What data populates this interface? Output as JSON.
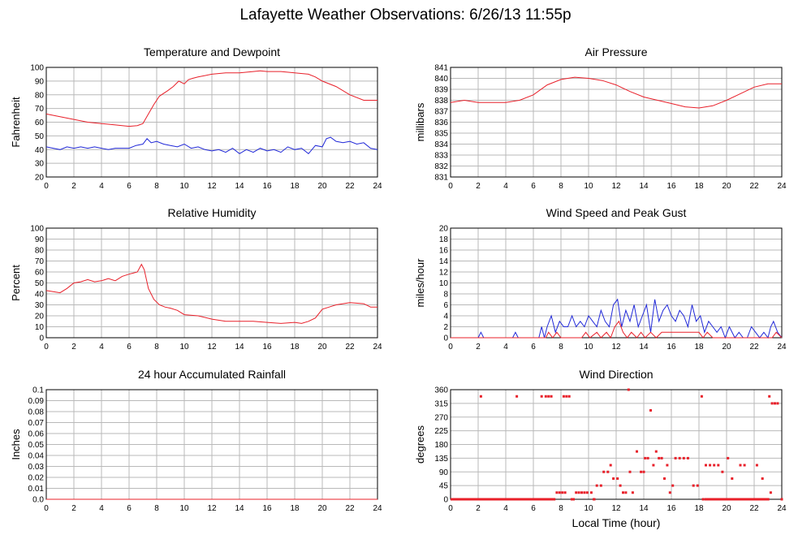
{
  "page": {
    "title": "Lafayette Weather Observations: 6/26/13 11:55p"
  },
  "colors": {
    "red": "#e8202a",
    "blue": "#2028d8",
    "grid": "#b9b9b9"
  },
  "chart_data": [
    {
      "id": "temp",
      "type": "line",
      "title": "Temperature and Dewpoint",
      "ylabel": "Fahrenheit",
      "xlabel": "",
      "xlim": [
        0,
        24
      ],
      "ylim": [
        20,
        100
      ],
      "xticks": [
        0,
        2,
        4,
        6,
        8,
        10,
        12,
        14,
        16,
        18,
        20,
        22,
        24
      ],
      "yticks": [
        "20",
        "30",
        "40",
        "50",
        "60",
        "70",
        "80",
        "90",
        "100"
      ],
      "grid": true,
      "series": [
        {
          "color": "#e8202a",
          "x": [
            0,
            1,
            2,
            3,
            4,
            5,
            6,
            6.6,
            7,
            7.4,
            7.8,
            8.2,
            8.8,
            9.2,
            9.6,
            10,
            10.3,
            10.6,
            11,
            12,
            13,
            14,
            15,
            15.5,
            16,
            17,
            18,
            19,
            19.5,
            20,
            21,
            22,
            23,
            24
          ],
          "y": [
            66,
            64,
            62,
            60,
            59,
            58,
            57,
            57.5,
            59,
            66,
            73,
            79,
            83,
            86,
            90,
            88,
            91,
            92,
            93,
            95,
            96,
            96,
            97,
            97.5,
            97,
            97,
            96,
            95,
            93,
            90,
            86,
            80,
            76,
            76
          ]
        },
        {
          "color": "#2028d8",
          "x": [
            0,
            0.5,
            1,
            1.5,
            2,
            2.5,
            3,
            3.5,
            4,
            4.5,
            5,
            5.5,
            6,
            6.5,
            7,
            7.3,
            7.6,
            8,
            8.5,
            9,
            9.5,
            10,
            10.5,
            11,
            11.5,
            12,
            12.5,
            13,
            13.5,
            14,
            14.5,
            15,
            15.5,
            16,
            16.5,
            17,
            17.5,
            18,
            18.5,
            19,
            19.5,
            20,
            20.3,
            20.6,
            21,
            21.5,
            22,
            22.5,
            23,
            23.5,
            24
          ],
          "y": [
            42,
            41,
            40,
            42,
            41,
            42,
            41,
            42,
            41,
            40,
            41,
            41,
            41,
            43,
            44,
            48,
            45,
            46,
            44,
            43,
            42,
            44,
            41,
            42,
            40,
            39,
            40,
            38,
            41,
            37,
            40,
            38,
            41,
            39,
            40,
            38,
            42,
            40,
            41,
            37,
            43,
            42,
            48,
            49,
            46,
            45,
            46,
            44,
            45,
            41,
            40
          ]
        }
      ]
    },
    {
      "id": "pressure",
      "type": "line",
      "title": "Air Pressure",
      "ylabel": "millibars",
      "xlabel": "",
      "xlim": [
        0,
        24
      ],
      "ylim": [
        831,
        841
      ],
      "xticks": [
        0,
        2,
        4,
        6,
        8,
        10,
        12,
        14,
        16,
        18,
        20,
        22,
        24
      ],
      "yticks": [
        "831",
        "832",
        "833",
        "834",
        "835",
        "836",
        "837",
        "838",
        "839",
        "840",
        "841"
      ],
      "grid": true,
      "series": [
        {
          "color": "#e8202a",
          "x": [
            0,
            1,
            2,
            3,
            4,
            5,
            6,
            7,
            8,
            9,
            10,
            11,
            12,
            13,
            14,
            15,
            16,
            17,
            18,
            19,
            20,
            21,
            22,
            23,
            24
          ],
          "y": [
            837.8,
            838,
            837.8,
            837.8,
            837.8,
            838,
            838.5,
            839.4,
            839.9,
            840.1,
            840,
            839.8,
            839.4,
            838.8,
            838.3,
            838,
            837.7,
            837.4,
            837.3,
            837.5,
            838,
            838.6,
            839.2,
            839.5,
            839.5
          ]
        }
      ]
    },
    {
      "id": "humidity",
      "type": "line",
      "title": "Relative Humidity",
      "ylabel": "Percent",
      "xlabel": "",
      "xlim": [
        0,
        24
      ],
      "ylim": [
        0,
        100
      ],
      "xticks": [
        0,
        2,
        4,
        6,
        8,
        10,
        12,
        14,
        16,
        18,
        20,
        22,
        24
      ],
      "yticks": [
        "0",
        "10",
        "20",
        "30",
        "40",
        "50",
        "60",
        "70",
        "80",
        "90",
        "100"
      ],
      "grid": true,
      "series": [
        {
          "color": "#e8202a",
          "x": [
            0,
            0.5,
            1,
            1.5,
            2,
            2.5,
            3,
            3.5,
            4,
            4.5,
            5,
            5.5,
            6,
            6.3,
            6.6,
            6.9,
            7.1,
            7.4,
            7.8,
            8.2,
            8.6,
            9,
            9.5,
            10,
            11,
            12,
            13,
            14,
            15,
            16,
            17,
            18,
            18.5,
            19,
            19.5,
            20,
            20.5,
            21,
            22,
            23,
            23.5,
            24
          ],
          "y": [
            43,
            42,
            41,
            45,
            50,
            51,
            53,
            51,
            52,
            54,
            52,
            56,
            58,
            59,
            60,
            67,
            62,
            45,
            35,
            30,
            28,
            27,
            25,
            21,
            20,
            17,
            15,
            15,
            15,
            14,
            13,
            14,
            13,
            15,
            18,
            26,
            28,
            30,
            32,
            31,
            28,
            28
          ]
        }
      ]
    },
    {
      "id": "wind",
      "type": "line",
      "title": "Wind Speed and Peak Gust",
      "ylabel": "miles/hour",
      "xlabel": "",
      "xlim": [
        0,
        24
      ],
      "ylim": [
        0,
        20
      ],
      "xticks": [
        0,
        2,
        4,
        6,
        8,
        10,
        12,
        14,
        16,
        18,
        20,
        22,
        24
      ],
      "yticks": [
        "0",
        "2",
        "4",
        "6",
        "8",
        "10",
        "12",
        "14",
        "16",
        "18",
        "20"
      ],
      "grid": true,
      "series": [
        {
          "color": "#2028d8",
          "x": [
            0,
            2,
            2.2,
            2.4,
            4.5,
            4.7,
            4.9,
            6.4,
            6.6,
            6.8,
            7,
            7.3,
            7.6,
            7.9,
            8.2,
            8.5,
            8.8,
            9.1,
            9.4,
            9.7,
            10,
            10.3,
            10.6,
            10.9,
            11.2,
            11.5,
            11.8,
            12.1,
            12.4,
            12.7,
            13,
            13.3,
            13.6,
            13.9,
            14.2,
            14.5,
            14.8,
            15.1,
            15.4,
            15.7,
            16,
            16.3,
            16.6,
            16.9,
            17.2,
            17.5,
            17.8,
            18.1,
            18.4,
            18.7,
            19,
            19.3,
            19.6,
            19.9,
            20.2,
            20.6,
            20.9,
            21.2,
            21.5,
            21.8,
            22.1,
            22.4,
            22.7,
            23,
            23.2,
            23.4,
            23.7,
            24
          ],
          "y": [
            0,
            0,
            1,
            0,
            0,
            1,
            0,
            0,
            2,
            0,
            2,
            4,
            1,
            3,
            2,
            2,
            4,
            2,
            3,
            2,
            4,
            3,
            2,
            5,
            3,
            2,
            6,
            7,
            2,
            5,
            3,
            6,
            2,
            4,
            6,
            1,
            7,
            3,
            5,
            6,
            4,
            3,
            5,
            4,
            2,
            6,
            3,
            4,
            1,
            3,
            2,
            1,
            2,
            0,
            2,
            0,
            1,
            0,
            0,
            2,
            1,
            0,
            1,
            0,
            2,
            3,
            1,
            0
          ]
        },
        {
          "color": "#e8202a",
          "x": [
            0,
            6.9,
            7.1,
            7.4,
            7.7,
            8,
            8.3,
            9.5,
            9.8,
            10.1,
            10.6,
            10.9,
            11.3,
            11.6,
            11.9,
            12.2,
            12.5,
            12.8,
            13.1,
            13.5,
            13.8,
            14.1,
            14.5,
            14.9,
            15.3,
            15.7,
            16.1,
            16.5,
            17,
            17.5,
            18,
            18.3,
            18.6,
            19,
            20,
            23.3,
            23.6,
            24
          ],
          "y": [
            0,
            0,
            1,
            0,
            1,
            0,
            0,
            0,
            1,
            0,
            1,
            0,
            1,
            0,
            2,
            3,
            1,
            0,
            1,
            0,
            1,
            0,
            1,
            0,
            1,
            1,
            1,
            1,
            1,
            1,
            1,
            0,
            1,
            0,
            0,
            0,
            1,
            0
          ]
        }
      ]
    },
    {
      "id": "rain",
      "type": "line",
      "title": "24 hour Accumulated Rainfall",
      "ylabel": "Inches",
      "xlabel": "",
      "xlim": [
        0,
        24
      ],
      "ylim": [
        0,
        0.1
      ],
      "xticks": [
        0,
        2,
        4,
        6,
        8,
        10,
        12,
        14,
        16,
        18,
        20,
        22,
        24
      ],
      "yticks": [
        "0.0",
        "0.01",
        "0.02",
        "0.03",
        "0.04",
        "0.05",
        "0.06",
        "0.07",
        "0.08",
        "0.09",
        "0.1"
      ],
      "grid": true,
      "series": [
        {
          "color": "#e8202a",
          "x": [
            0,
            24
          ],
          "y": [
            0,
            0
          ]
        }
      ]
    },
    {
      "id": "direction",
      "type": "scatter",
      "title": "Wind Direction",
      "ylabel": "degrees",
      "xlabel": "Local Time (hour)",
      "xlim": [
        0,
        24
      ],
      "ylim": [
        0,
        360
      ],
      "xticks": [
        0,
        2,
        4,
        6,
        8,
        10,
        12,
        14,
        16,
        18,
        20,
        22,
        24
      ],
      "yticks": [
        "0",
        "45",
        "90",
        "135",
        "180",
        "225",
        "270",
        "315",
        "360"
      ],
      "grid": true,
      "series": [
        {
          "color": "#e8202a",
          "points": [
            [
              2.2,
              338
            ],
            [
              4.8,
              338
            ],
            [
              6.6,
              338
            ],
            [
              6.9,
              338
            ],
            [
              7.1,
              338
            ],
            [
              7.3,
              338
            ],
            [
              8.2,
              338
            ],
            [
              8.4,
              338
            ],
            [
              8.6,
              338
            ],
            [
              7.7,
              22
            ],
            [
              7.9,
              22
            ],
            [
              8.1,
              22
            ],
            [
              8.3,
              22
            ],
            [
              9.1,
              22
            ],
            [
              9.3,
              22
            ],
            [
              9.5,
              22
            ],
            [
              9.7,
              22
            ],
            [
              9.9,
              22
            ],
            [
              10.2,
              22
            ],
            [
              10.6,
              45
            ],
            [
              10.9,
              45
            ],
            [
              11.1,
              90
            ],
            [
              11.4,
              90
            ],
            [
              11.6,
              112
            ],
            [
              11.8,
              68
            ],
            [
              12.1,
              68
            ],
            [
              12.3,
              45
            ],
            [
              12.5,
              22
            ],
            [
              12.7,
              22
            ],
            [
              12.9,
              360
            ],
            [
              13,
              90
            ],
            [
              13.2,
              22
            ],
            [
              13.5,
              157
            ],
            [
              13.8,
              90
            ],
            [
              14,
              90
            ],
            [
              14.1,
              135
            ],
            [
              14.3,
              135
            ],
            [
              14.5,
              292
            ],
            [
              14.7,
              112
            ],
            [
              14.9,
              157
            ],
            [
              15.1,
              135
            ],
            [
              15.3,
              135
            ],
            [
              15.5,
              68
            ],
            [
              15.7,
              112
            ],
            [
              15.9,
              22
            ],
            [
              16.1,
              45
            ],
            [
              16.3,
              135
            ],
            [
              16.6,
              135
            ],
            [
              16.9,
              135
            ],
            [
              17.2,
              135
            ],
            [
              17.6,
              45
            ],
            [
              17.9,
              45
            ],
            [
              18.2,
              338
            ],
            [
              18.5,
              112
            ],
            [
              18.8,
              112
            ],
            [
              19.1,
              112
            ],
            [
              19.4,
              112
            ],
            [
              19.7,
              90
            ],
            [
              20.1,
              135
            ],
            [
              20.4,
              68
            ],
            [
              21,
              112
            ],
            [
              21.3,
              112
            ],
            [
              22.2,
              112
            ],
            [
              22.6,
              68
            ],
            [
              23.1,
              338
            ],
            [
              23.3,
              315
            ],
            [
              23.5,
              315
            ],
            [
              23.7,
              315
            ],
            [
              23.2,
              22
            ],
            [
              18.3,
              0
            ],
            [
              19,
              0
            ],
            [
              22.8,
              0
            ],
            [
              24,
              0
            ]
          ],
          "zero_runs": [
            [
              0,
              7.6
            ],
            [
              8.7,
              9.0
            ],
            [
              10.3,
              10.5
            ],
            [
              18.4,
              23.1
            ]
          ]
        }
      ]
    }
  ]
}
